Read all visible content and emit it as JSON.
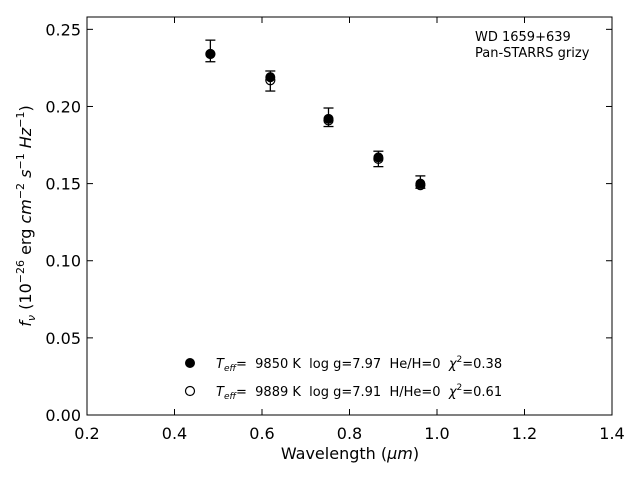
{
  "chart_data": {
    "type": "scatter",
    "xlabel": {
      "main": "Wavelength (",
      "unit": "μm",
      "close": ")"
    },
    "ylabel": {
      "f": "f",
      "nu": "ν",
      "open": " (10",
      "exp1": "−26",
      "erg": " erg ",
      "cm": "cm",
      "exp2": "−2",
      "s": "s",
      "exp3": "−1",
      "hz": "Hz",
      "exp4": "−1",
      "close": ")"
    },
    "xlim": [
      0.2,
      1.4
    ],
    "ylim": [
      0.0,
      0.258
    ],
    "xticks": [
      "0.2",
      "0.4",
      "0.6",
      "0.8",
      "1.0",
      "1.2",
      "1.4"
    ],
    "yticks": [
      "0.00",
      "0.05",
      "0.10",
      "0.15",
      "0.20",
      "0.25"
    ],
    "annotation": [
      "WD 1659+639",
      "Pan-STARRS grizy"
    ],
    "series": [
      {
        "marker": "filled",
        "x": [
          0.482,
          0.619,
          0.752,
          0.866,
          0.962
        ],
        "y": [
          0.234,
          0.219,
          0.192,
          0.167,
          0.15
        ],
        "yerr_low": [
          0.005,
          0.009,
          0.005,
          0.006,
          0.003
        ],
        "yerr_high": [
          0.009,
          0.004,
          0.007,
          0.004,
          0.005
        ]
      },
      {
        "marker": "open",
        "x": [
          0.482,
          0.619,
          0.752,
          0.866,
          0.962
        ],
        "y": [
          0.234,
          0.217,
          0.191,
          0.166,
          0.149
        ]
      }
    ],
    "legend": [
      {
        "marker": "filled",
        "teff_label": "T",
        "teff_sub": "eff",
        "text": "=  9850 K  log g=7.97  He/H=0  ",
        "chi": "χ",
        "chi_exp": "2",
        "chi_val": "=0.38"
      },
      {
        "marker": "open",
        "teff_label": "T",
        "teff_sub": "eff",
        "text": "=  9889 K  log g=7.91  H/He=0  ",
        "chi": "χ",
        "chi_exp": "2",
        "chi_val": "=0.61"
      }
    ]
  }
}
